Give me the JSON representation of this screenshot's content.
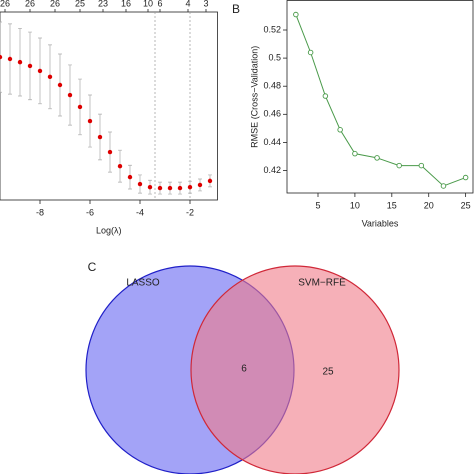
{
  "chart_data": [
    {
      "type": "scatter",
      "x_label": "Log(λ)",
      "x": [
        -9.6,
        -9.2,
        -8.8,
        -8.4,
        -8.0,
        -7.6,
        -7.2,
        -6.8,
        -6.4,
        -6.0,
        -5.6,
        -5.2,
        -4.8,
        -4.4,
        -4.0,
        -3.6,
        -3.2,
        -2.8,
        -2.4,
        -2.0,
        -1.6,
        -1.2
      ],
      "values": [
        1.356,
        1.35,
        1.34,
        1.328,
        1.312,
        1.293,
        1.267,
        1.235,
        1.197,
        1.152,
        1.101,
        1.053,
        1.008,
        0.973,
        0.951,
        0.941,
        0.938,
        0.938,
        0.938,
        0.941,
        0.948,
        0.961
      ],
      "errors": [
        0.112,
        0.112,
        0.108,
        0.108,
        0.105,
        0.102,
        0.099,
        0.096,
        0.089,
        0.083,
        0.073,
        0.064,
        0.051,
        0.038,
        0.029,
        0.022,
        0.019,
        0.019,
        0.019,
        0.019,
        0.019,
        0.019
      ],
      "color": "#dd0000",
      "error_color": "#aaaaaa",
      "xlim": [
        -9.6,
        -0.9
      ],
      "ylim": [
        0.9,
        1.5
      ],
      "xticks": [
        -8,
        -6,
        -4,
        -2
      ],
      "top_ticks": [
        {
          "value": -9.4,
          "label": "26"
        },
        {
          "value": -8.4,
          "label": "26"
        },
        {
          "value": -7.4,
          "label": "26"
        },
        {
          "value": -6.4,
          "label": "25"
        },
        {
          "value": -5.48,
          "label": "23"
        },
        {
          "value": -4.56,
          "label": "16"
        },
        {
          "value": -3.68,
          "label": "10"
        },
        {
          "value": -3.2,
          "label": "6"
        },
        {
          "value": -2.08,
          "label": "4"
        },
        {
          "value": -1.36,
          "label": "3"
        }
      ],
      "vlines": [
        -3.4,
        -2.0
      ]
    },
    {
      "type": "line",
      "panel_label": "B",
      "x_label": "Variables",
      "y_label": "RMSE (Cross−Validation)",
      "x": [
        2,
        4,
        6,
        8,
        10,
        13,
        16,
        19,
        22,
        25
      ],
      "values": [
        0.531,
        0.504,
        0.473,
        0.449,
        0.432,
        0.429,
        0.4235,
        0.4235,
        0.409,
        0.415
      ],
      "color": "#4a9a4a",
      "xlim": [
        0.8,
        26.0
      ],
      "ylim": [
        0.404,
        0.541
      ],
      "xticks": [
        5,
        10,
        15,
        20,
        25
      ],
      "yticks": [
        0.42,
        0.44,
        0.46,
        0.48,
        0.5,
        0.52
      ]
    },
    {
      "type": "venn",
      "panel_label": "C",
      "sets": [
        {
          "name": "LASSO",
          "color": "#a3a3f7",
          "edge": "#2020c8"
        },
        {
          "name": "SVM−RFE",
          "color": "#f07c88",
          "edge": "#d02838"
        }
      ],
      "regions": [
        {
          "sets": [
            0,
            1
          ],
          "value": 6
        },
        {
          "sets": [
            1
          ],
          "value": 25
        }
      ]
    }
  ]
}
